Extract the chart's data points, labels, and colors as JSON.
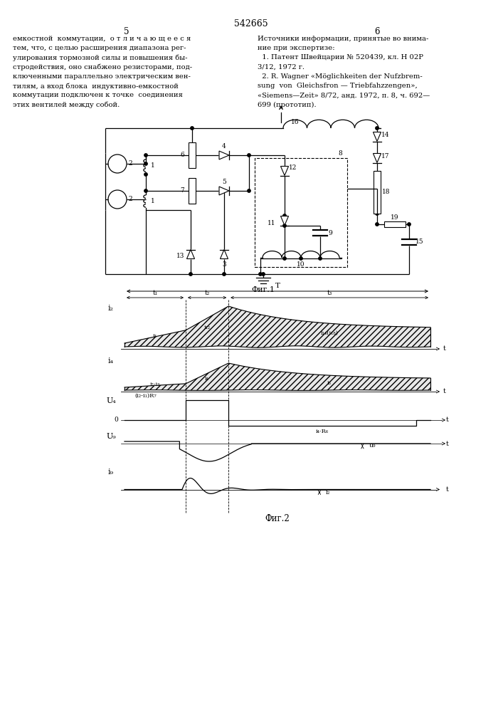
{
  "page_title": "542665",
  "page_col_left": "5",
  "page_col_right": "6",
  "text_left": "емкостной  коммутации,  о т л и ч а ю щ е е с я\nтем, что, с целью расширения диапазона рег-\nулирования тормозной силы и повышения бы-\nстродействия, оно снабжено резисторами, под-\nключенными параллельно электрическим вен-\nтилям, а вход блока  индуктивно-емкостной\nкоммутации подключен к точке  соединения\nэтих вентилей между собой.",
  "text_right": "Источники информации, принятые во внима-\nние при экспертизе:\n  1. Патент Швейцарии № 520439, кл. Н 02Р\n3/12, 1972 г.\n  2. R. Wagner «Möglichkeiten der Nufzbrem-\nsung  von  Gleichsfron — Triebfahzzengen»,\n«Siemens—Zeit» 8/72, анд. 1972, п. 8, ч. 692—\n699 (прототип).",
  "fig1_label": "Фиг.1",
  "fig2_label": "Фиг.2",
  "bg_color": "#ffffff",
  "line_color": "#000000"
}
